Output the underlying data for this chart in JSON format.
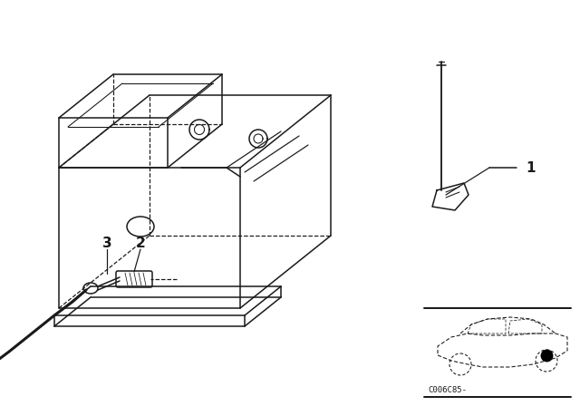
{
  "bg_color": "#ffffff",
  "line_color": "#1a1a1a",
  "fig_width": 6.4,
  "fig_height": 4.48,
  "dpi": 100,
  "callout_code": "C006C85-",
  "lw": 1.1
}
